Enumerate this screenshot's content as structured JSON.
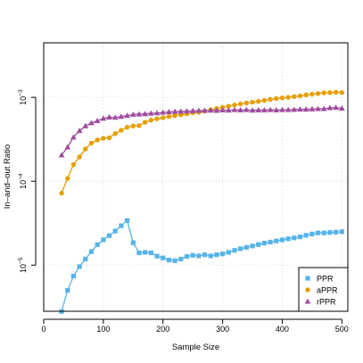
{
  "chart_data": {
    "type": "line",
    "title": "",
    "xlabel": "Sample Size",
    "ylabel": "In–and–out Ratio",
    "xlim": [
      0,
      510
    ],
    "ylim_log10": [
      -5.55,
      -2.35
    ],
    "y_scale": "log",
    "grid": true,
    "legend_position": "bottom-right",
    "x_ticks": [
      0,
      100,
      200,
      300,
      400,
      500
    ],
    "x_tick_labels": [
      "0",
      "100",
      "200",
      "300",
      "400",
      "500"
    ],
    "y_ticks": [
      1e-05,
      0.0001,
      0.001
    ],
    "y_tick_labels": [
      {
        "base": "10",
        "exp": "−5"
      },
      {
        "base": "10",
        "exp": "−4"
      },
      {
        "base": "10",
        "exp": "−3"
      }
    ],
    "x": [
      30,
      40,
      50,
      60,
      70,
      80,
      90,
      100,
      110,
      120,
      130,
      140,
      150,
      160,
      170,
      180,
      190,
      200,
      210,
      220,
      230,
      240,
      250,
      260,
      270,
      280,
      290,
      300,
      310,
      320,
      330,
      340,
      350,
      360,
      370,
      380,
      390,
      400,
      410,
      420,
      430,
      440,
      450,
      460,
      470,
      480,
      490,
      500
    ],
    "series": [
      {
        "name": "PPR",
        "color": "#56B4E9",
        "marker": "square",
        "values": [
          2.8e-06,
          5e-06,
          7.4e-06,
          9.6e-06,
          1.18e-05,
          1.45e-05,
          1.75e-05,
          2e-05,
          2.25e-05,
          2.55e-05,
          2.95e-05,
          3.4e-05,
          1.85e-05,
          1.4e-05,
          1.42e-05,
          1.4e-05,
          1.28e-05,
          1.22e-05,
          1.15e-05,
          1.13e-05,
          1.18e-05,
          1.27e-05,
          1.31e-05,
          1.29e-05,
          1.33e-05,
          1.29e-05,
          1.33e-05,
          1.36e-05,
          1.42e-05,
          1.5e-05,
          1.57e-05,
          1.63e-05,
          1.69e-05,
          1.76e-05,
          1.83e-05,
          1.88e-05,
          1.94e-05,
          2e-05,
          2.06e-05,
          2.11e-05,
          2.17e-05,
          2.27e-05,
          2.35e-05,
          2.42e-05,
          2.42e-05,
          2.45e-05,
          2.47e-05,
          2.5e-05
        ]
      },
      {
        "name": "aPPR",
        "color": "#E69F00",
        "marker": "circle",
        "values": [
          7.2e-05,
          0.000108,
          0.000158,
          0.000195,
          0.000242,
          0.000285,
          0.00031,
          0.000325,
          0.00033,
          0.00037,
          0.000405,
          0.00044,
          0.000455,
          0.00046,
          0.000505,
          0.000535,
          0.000555,
          0.00057,
          0.00059,
          0.000605,
          0.00062,
          0.000635,
          0.000655,
          0.000665,
          0.000685,
          0.00071,
          0.000735,
          0.00076,
          0.000785,
          0.00081,
          0.000835,
          0.000855,
          0.000875,
          0.000895,
          0.00092,
          0.000945,
          0.000965,
          0.000985,
          0.001,
          0.00102,
          0.00104,
          0.00107,
          0.00109,
          0.00111,
          0.00113,
          0.00114,
          0.00115,
          0.00114
        ]
      },
      {
        "name": "rPPR",
        "color": "#9F4C9E",
        "marker": "triangle",
        "values": [
          0.000205,
          0.000255,
          0.000335,
          0.0004,
          0.000455,
          0.000495,
          0.000525,
          0.00056,
          0.00058,
          0.000575,
          0.00059,
          0.000605,
          0.000625,
          0.00063,
          0.000635,
          0.000645,
          0.00065,
          0.00066,
          0.00067,
          0.000675,
          0.00068,
          0.000685,
          0.00069,
          0.000695,
          0.000695,
          0.0007,
          0.000695,
          0.000705,
          0.0007,
          0.00071,
          0.000705,
          0.00071,
          0.0007,
          0.000705,
          0.000705,
          0.00071,
          0.000705,
          0.00071,
          0.00071,
          0.000715,
          0.00072,
          0.00072,
          0.000725,
          0.00073,
          0.00073,
          0.00075,
          0.000755,
          0.00074
        ]
      }
    ]
  }
}
